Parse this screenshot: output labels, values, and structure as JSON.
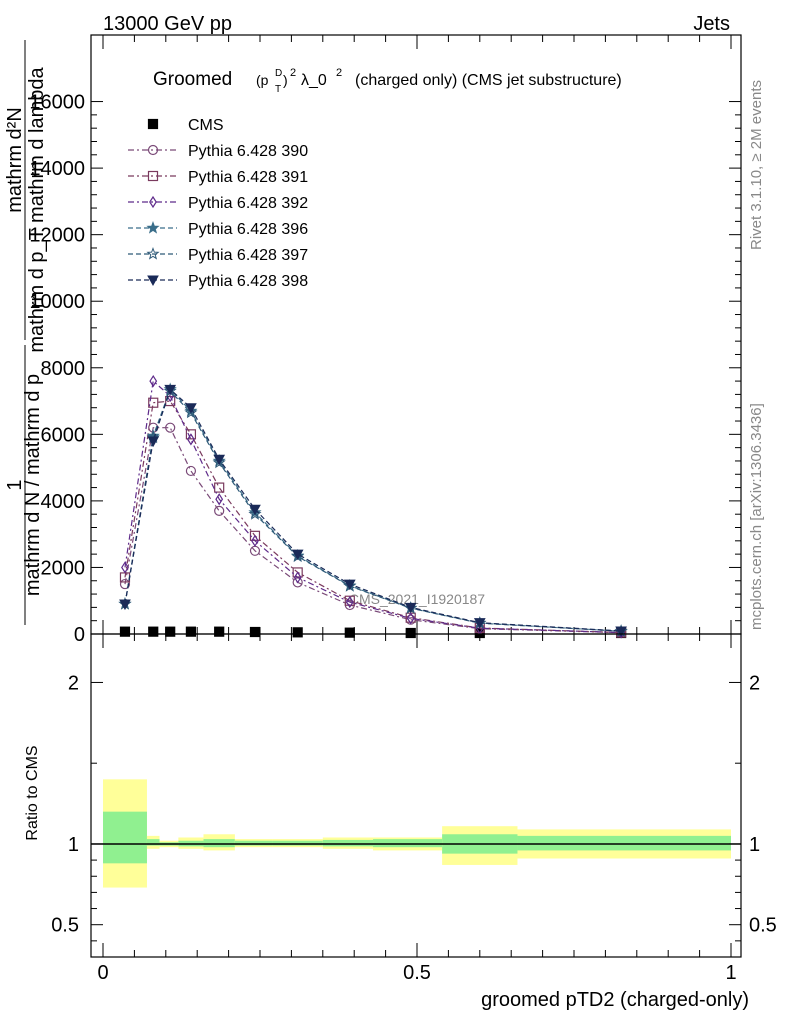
{
  "header": {
    "energy_label": "13000 GeV pp",
    "category_label": "Jets"
  },
  "side_labels": {
    "rivet": "Rivet 3.1.10, ≥ 2M events",
    "mcplots": "mcplots.cern.ch [arXiv:1306.3436]"
  },
  "watermark": "CMS_2021_I1920187",
  "chart_data": [
    {
      "type": "line",
      "title_prefix": "Groomed",
      "title_p": "(p",
      "title_sup": "D",
      "title_sub": "T",
      "title_close": ")",
      "title_exp": "2",
      "title_lambda": "λ_0",
      "title_lambda_exp": "2",
      "title_suffix": "(charged only) (CMS jet substructure)",
      "ylabel_num": "1",
      "ylabel_den": "mathrm d N / mathrm d p",
      "ylabel_num2": "mathrm d²N",
      "ylabel_den2": "mathrm d p_T mathrm d lambda",
      "ylim": [
        0,
        18000
      ],
      "yticks": [
        0,
        2000,
        4000,
        6000,
        8000,
        10000,
        12000,
        14000,
        16000
      ],
      "ytick_labels": [
        "0",
        "2000",
        "4000",
        "6000",
        "8000",
        "10000",
        "12000",
        "14000",
        "16000"
      ],
      "xlim": [
        0,
        1
      ],
      "legend_placement": "top-left",
      "x": [
        0.035,
        0.08,
        0.107,
        0.14,
        0.185,
        0.242,
        0.31,
        0.393,
        0.49,
        0.6,
        0.825
      ],
      "series": [
        {
          "name": "CMS",
          "color": "#000000",
          "marker": "square-filled",
          "values": [
            70,
            70,
            70,
            70,
            70,
            60,
            50,
            40,
            20,
            10,
            5
          ]
        },
        {
          "name": "Pythia 6.428 390",
          "color": "#7a4a78",
          "marker": "circle-open",
          "values": [
            1500,
            6200,
            6200,
            4900,
            3700,
            2500,
            1550,
            870,
            430,
            160,
            40
          ]
        },
        {
          "name": "Pythia 6.428 391",
          "color": "#7a3a5e",
          "marker": "square-open",
          "values": [
            1700,
            6950,
            7000,
            6000,
            4400,
            2950,
            1850,
            1000,
            490,
            180,
            45
          ]
        },
        {
          "name": "Pythia 6.428 392",
          "color": "#5e2a8a",
          "marker": "diamond-open",
          "values": [
            2000,
            7600,
            7150,
            5850,
            4050,
            2800,
            1700,
            960,
            470,
            175,
            45
          ]
        },
        {
          "name": "Pythia 6.428 396",
          "color": "#3a6e8a",
          "marker": "star-filled",
          "values": [
            900,
            5950,
            7350,
            6700,
            5200,
            3650,
            2350,
            1450,
            780,
            330,
            85
          ]
        },
        {
          "name": "Pythia 6.428 397",
          "color": "#2f5a78",
          "marker": "star-open",
          "values": [
            900,
            5900,
            7300,
            6650,
            5150,
            3600,
            2330,
            1440,
            775,
            325,
            85
          ]
        },
        {
          "name": "Pythia 6.428 398",
          "color": "#1a2a58",
          "marker": "triangle-down-filled",
          "values": [
            900,
            5800,
            7350,
            6800,
            5250,
            3750,
            2400,
            1500,
            800,
            340,
            90
          ]
        }
      ]
    },
    {
      "type": "area",
      "ylabel": "Ratio to CMS",
      "xlabel": "groomed pTD2 (charged-only)",
      "xlim": [
        0,
        1
      ],
      "ylim": [
        0.3,
        2.3
      ],
      "yticks": [
        0.5,
        1,
        2
      ],
      "ytick_labels": [
        "0.5",
        "1",
        "2"
      ],
      "xticks": [
        0,
        0.5,
        1
      ],
      "xtick_labels": [
        "0",
        "0.5",
        "1"
      ],
      "bins": [
        {
          "x0": 0.0,
          "x1": 0.07,
          "inner": [
            0.88,
            1.2
          ],
          "outer": [
            0.73,
            1.4
          ]
        },
        {
          "x0": 0.07,
          "x1": 0.09,
          "inner": [
            0.99,
            1.03
          ],
          "outer": [
            0.97,
            1.05
          ]
        },
        {
          "x0": 0.09,
          "x1": 0.12,
          "inner": [
            0.99,
            1.01
          ],
          "outer": [
            0.98,
            1.02
          ]
        },
        {
          "x0": 0.12,
          "x1": 0.16,
          "inner": [
            0.985,
            1.02
          ],
          "outer": [
            0.97,
            1.04
          ]
        },
        {
          "x0": 0.16,
          "x1": 0.21,
          "inner": [
            0.98,
            1.03
          ],
          "outer": [
            0.96,
            1.06
          ]
        },
        {
          "x0": 0.21,
          "x1": 0.27,
          "inner": [
            0.99,
            1.02
          ],
          "outer": [
            0.98,
            1.03
          ]
        },
        {
          "x0": 0.27,
          "x1": 0.35,
          "inner": [
            0.99,
            1.02
          ],
          "outer": [
            0.98,
            1.03
          ]
        },
        {
          "x0": 0.35,
          "x1": 0.43,
          "inner": [
            0.985,
            1.025
          ],
          "outer": [
            0.97,
            1.04
          ]
        },
        {
          "x0": 0.43,
          "x1": 0.54,
          "inner": [
            0.98,
            1.03
          ],
          "outer": [
            0.96,
            1.04
          ]
        },
        {
          "x0": 0.54,
          "x1": 0.66,
          "inner": [
            0.94,
            1.06
          ],
          "outer": [
            0.87,
            1.11
          ]
        },
        {
          "x0": 0.66,
          "x1": 1.0,
          "inner": [
            0.96,
            1.05
          ],
          "outer": [
            0.91,
            1.09
          ]
        }
      ],
      "inner_color": "#90f090",
      "outer_color": "#ffff99",
      "reference_value": 1
    }
  ]
}
